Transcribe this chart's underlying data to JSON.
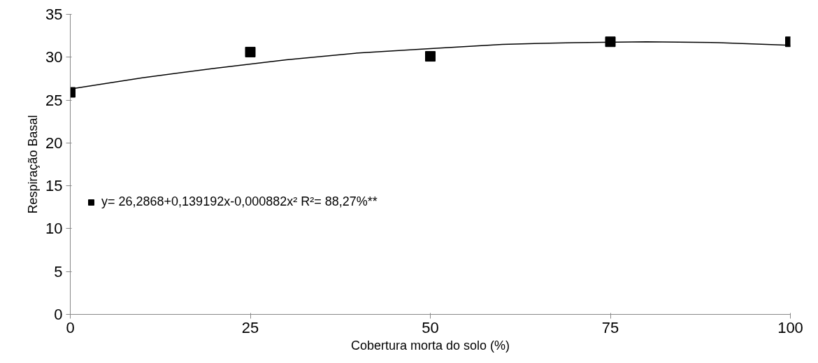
{
  "chart_data": {
    "type": "scatter",
    "xlabel": "Cobertura morta do solo (%)",
    "ylabel": "Respiração Basal",
    "xlim": [
      0,
      100
    ],
    "xticks": [
      0,
      25,
      50,
      75,
      100
    ],
    "ylim": [
      0,
      35
    ],
    "yticks": [
      0,
      5,
      10,
      15,
      20,
      25,
      30,
      35
    ],
    "grid": false,
    "legend": "left",
    "marker": "square",
    "series": [
      {
        "name": "y= 26,2868+0,139192x-0,000882x² R²= 88,27%**",
        "color": "#000000",
        "x": [
          0,
          25,
          50,
          75,
          100
        ],
        "values": [
          25.9,
          30.6,
          30.1,
          31.8,
          31.8
        ]
      },
      {
        "type": "line",
        "color": "#000000",
        "line_style": "solid",
        "marker": "none",
        "x": [
          0,
          10,
          20,
          30,
          40,
          50,
          60,
          70,
          80,
          90,
          100
        ],
        "values": [
          26.3,
          27.6,
          28.7,
          29.7,
          30.5,
          31.0,
          31.5,
          31.7,
          31.8,
          31.7,
          31.4
        ]
      }
    ]
  }
}
